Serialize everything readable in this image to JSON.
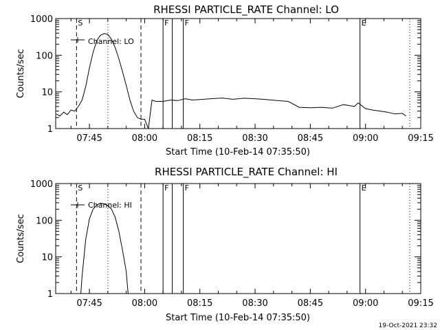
{
  "chart_data": [
    {
      "type": "line",
      "title": "RHESSI PARTICLE_RATE Channel: LO",
      "xlabel": "Start Time (10-Feb-14 07:35:50)",
      "ylabel": "Counts/sec",
      "yscale": "log",
      "ylim": [
        1,
        1000
      ],
      "xlim": [
        "07:35:50",
        "09:15:00"
      ],
      "xtick_labels": [
        "07:45",
        "08:00",
        "08:15",
        "08:30",
        "08:45",
        "09:00",
        "09:15"
      ],
      "ytick_labels": [
        "1",
        "10",
        "100",
        "1000"
      ],
      "legend": {
        "label": "Channel: LO",
        "placement": "top-left"
      },
      "markers": [
        {
          "label": "S",
          "time": "07:41:30",
          "style": "dashed"
        },
        {
          "label": "",
          "time": "07:50:00",
          "style": "dotted"
        },
        {
          "label": "",
          "time": "07:59:00",
          "style": "dashed"
        },
        {
          "label": "F",
          "time": "08:05:00",
          "style": "solid"
        },
        {
          "label": "",
          "time": "08:07:30",
          "style": "solid"
        },
        {
          "label": "F",
          "time": "08:10:30",
          "style": "solid"
        },
        {
          "label": "E",
          "time": "08:58:30",
          "style": "solid"
        },
        {
          "label": "",
          "time": "09:12:00",
          "style": "dotted"
        }
      ],
      "series": [
        {
          "name": "Channel: LO",
          "x": [
            "07:36:00",
            "07:37:00",
            "07:38:00",
            "07:39:00",
            "07:40:00",
            "07:41:00",
            "07:42:00",
            "07:43:00",
            "07:44:00",
            "07:45:00",
            "07:46:00",
            "07:47:00",
            "07:48:00",
            "07:49:00",
            "07:50:00",
            "07:51:00",
            "07:52:00",
            "07:53:00",
            "07:54:00",
            "07:55:00",
            "07:56:00",
            "07:57:00",
            "07:58:00",
            "07:59:00",
            "08:00:00",
            "08:01:00",
            "08:02:00",
            "08:03:00",
            "08:05:00",
            "08:07:00",
            "08:09:00",
            "08:11:00",
            "08:13:00",
            "08:15:00",
            "08:18:00",
            "08:21:00",
            "08:24:00",
            "08:27:00",
            "08:30:00",
            "08:33:00",
            "08:36:00",
            "08:39:00",
            "08:42:00",
            "08:45:00",
            "08:48:00",
            "08:51:00",
            "08:54:00",
            "08:57:00",
            "08:58:00",
            "09:00:00",
            "09:02:00",
            "09:04:00",
            "09:06:00",
            "09:08:00",
            "09:10:00",
            "09:11:00"
          ],
          "y": [
            2.5,
            2.2,
            2.8,
            2.4,
            3.2,
            3.0,
            4.0,
            6.0,
            14,
            45,
            120,
            250,
            350,
            390,
            370,
            270,
            160,
            80,
            35,
            15,
            6,
            3,
            2,
            1.8,
            1.8,
            1,
            6,
            5.5,
            5.5,
            6,
            5.8,
            6.5,
            6,
            6.2,
            6.5,
            6.8,
            6.3,
            6.7,
            6.5,
            6.2,
            5.8,
            5.5,
            3.8,
            3.7,
            3.8,
            3.6,
            4.5,
            4.0,
            5.0,
            3.5,
            3.2,
            3.0,
            2.8,
            2.5,
            2.6,
            2.2
          ]
        }
      ]
    },
    {
      "type": "line",
      "title": "RHESSI PARTICLE_RATE Channel: HI",
      "xlabel": "Start Time (10-Feb-14 07:35:50)",
      "ylabel": "Counts/sec",
      "yscale": "log",
      "ylim": [
        1,
        1000
      ],
      "xlim": [
        "07:35:50",
        "09:15:00"
      ],
      "xtick_labels": [
        "07:45",
        "08:00",
        "08:15",
        "08:30",
        "08:45",
        "09:00",
        "09:15"
      ],
      "ytick_labels": [
        "1",
        "10",
        "100",
        "1000"
      ],
      "legend": {
        "label": "Channel: HI",
        "placement": "top-left"
      },
      "markers": [
        {
          "label": "S",
          "time": "07:41:30",
          "style": "dashed"
        },
        {
          "label": "",
          "time": "07:50:00",
          "style": "dotted"
        },
        {
          "label": "",
          "time": "07:59:00",
          "style": "dashed"
        },
        {
          "label": "F",
          "time": "08:05:00",
          "style": "solid"
        },
        {
          "label": "",
          "time": "08:07:30",
          "style": "solid"
        },
        {
          "label": "F",
          "time": "08:10:30",
          "style": "solid"
        },
        {
          "label": "E",
          "time": "08:58:30",
          "style": "solid"
        },
        {
          "label": "",
          "time": "09:12:00",
          "style": "dotted"
        }
      ],
      "series": [
        {
          "name": "Channel: HI",
          "x": [
            "07:42:40",
            "07:43:00",
            "07:44:00",
            "07:45:00",
            "07:46:00",
            "07:47:00",
            "07:48:00",
            "07:49:00",
            "07:50:00",
            "07:51:00",
            "07:52:00",
            "07:53:00",
            "07:54:00",
            "07:55:00",
            "07:55:30"
          ],
          "y": [
            1,
            3,
            30,
            110,
            200,
            260,
            290,
            280,
            250,
            200,
            120,
            50,
            15,
            4,
            1
          ]
        }
      ]
    }
  ],
  "footer": {
    "timestamp": "19-Oct-2021 23:32"
  }
}
